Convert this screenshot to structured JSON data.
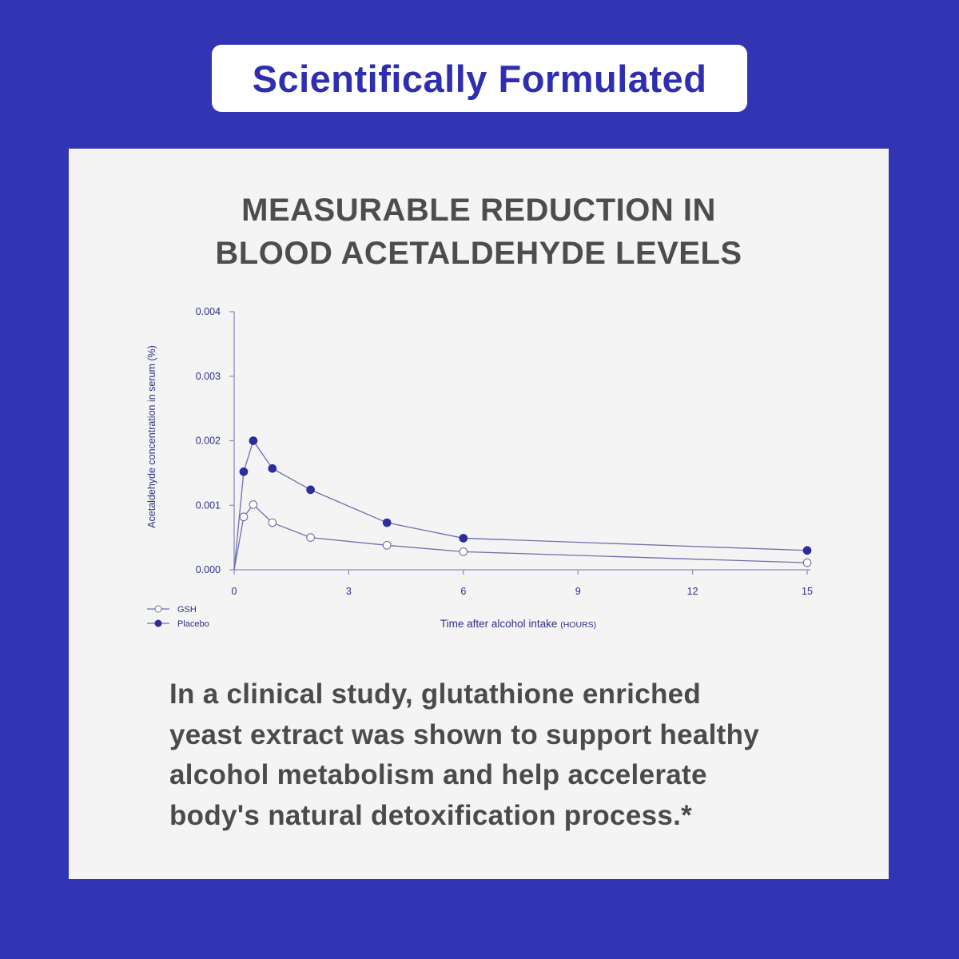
{
  "header": {
    "badge_text": "Scientifically Formulated"
  },
  "panel": {
    "title_line1": "MEASURABLE REDUCTION IN",
    "title_line2": "BLOOD ACETALDEHYDE LEVELS",
    "body_lines": [
      "In a clinical study, glutathione enriched",
      "yeast extract was shown to support healthy",
      "alcohol metabolism and help accelerate",
      "body's natural detoxification process.*"
    ]
  },
  "colors": {
    "background": "#3235b3",
    "badge_text": "#2e2fb0",
    "panel_bg": "#f4f4f4",
    "chart_ink": "#2f2f8e",
    "axis_line": "#8a8bbd",
    "series_line": "#6e6fae",
    "heading_text": "#4d4d4d"
  },
  "chart_data": {
    "type": "line",
    "ylabel": "Acetaldehyde concentration in serum (%)",
    "xlabel_main": "Time after alcohol intake",
    "xlabel_unit": "(HOURS)",
    "xlim": [
      0,
      15
    ],
    "ylim": [
      0,
      0.004
    ],
    "x_ticks": [
      0,
      3,
      6,
      9,
      12,
      15
    ],
    "y_ticks": [
      0.0,
      0.001,
      0.002,
      0.003,
      0.004
    ],
    "y_tick_labels": [
      "0.000",
      "0.001",
      "0.002",
      "0.003",
      "0.004"
    ],
    "grid": false,
    "legend_position": "bottom-left",
    "series": [
      {
        "name": "GSH",
        "marker": "open-circle",
        "x": [
          0,
          0.25,
          0.5,
          1,
          2,
          4,
          6,
          15
        ],
        "y": [
          0,
          0.00082,
          0.00101,
          0.00073,
          0.0005,
          0.00038,
          0.00028,
          0.00011
        ]
      },
      {
        "name": "Placebo",
        "marker": "filled-circle",
        "x": [
          0,
          0.25,
          0.5,
          1,
          2,
          4,
          6,
          15
        ],
        "y": [
          0,
          0.00152,
          0.002,
          0.00157,
          0.00124,
          0.00073,
          0.00049,
          0.0003
        ]
      }
    ]
  }
}
